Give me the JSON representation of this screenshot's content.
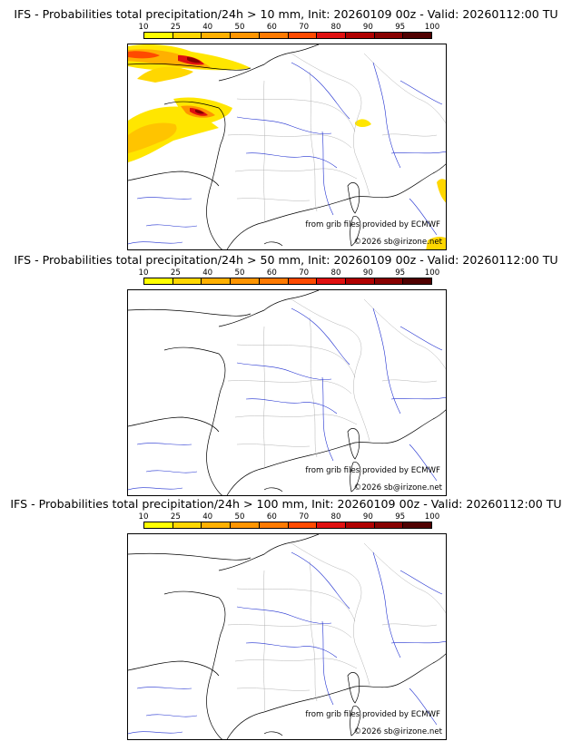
{
  "colorbar": {
    "ticks": [
      "10",
      "25",
      "40",
      "50",
      "60",
      "70",
      "80",
      "90",
      "95",
      "100"
    ],
    "colors": [
      "#ffff00",
      "#ffd700",
      "#ffb000",
      "#ff9500",
      "#ff7a00",
      "#ff4a00",
      "#e01010",
      "#b00000",
      "#880000",
      "#500000"
    ]
  },
  "credits": {
    "source": "from grib files provided by ECMWF",
    "copyright": "©2026 sb@irizone.net"
  },
  "panels": [
    {
      "title": "IFS - Probabilities total precipitation/24h > 10 mm, Init: 20260109 00z - Valid: 20260112:00 TU",
      "has_precip": true
    },
    {
      "title": "IFS - Probabilities total precipitation/24h > 50 mm, Init: 20260109 00z - Valid: 20260112:00 TU",
      "has_precip": false
    },
    {
      "title": "IFS - Probabilities total precipitation/24h > 100 mm, Init: 20260109 00z - Valid: 20260112:00 TU",
      "has_precip": false
    }
  ]
}
